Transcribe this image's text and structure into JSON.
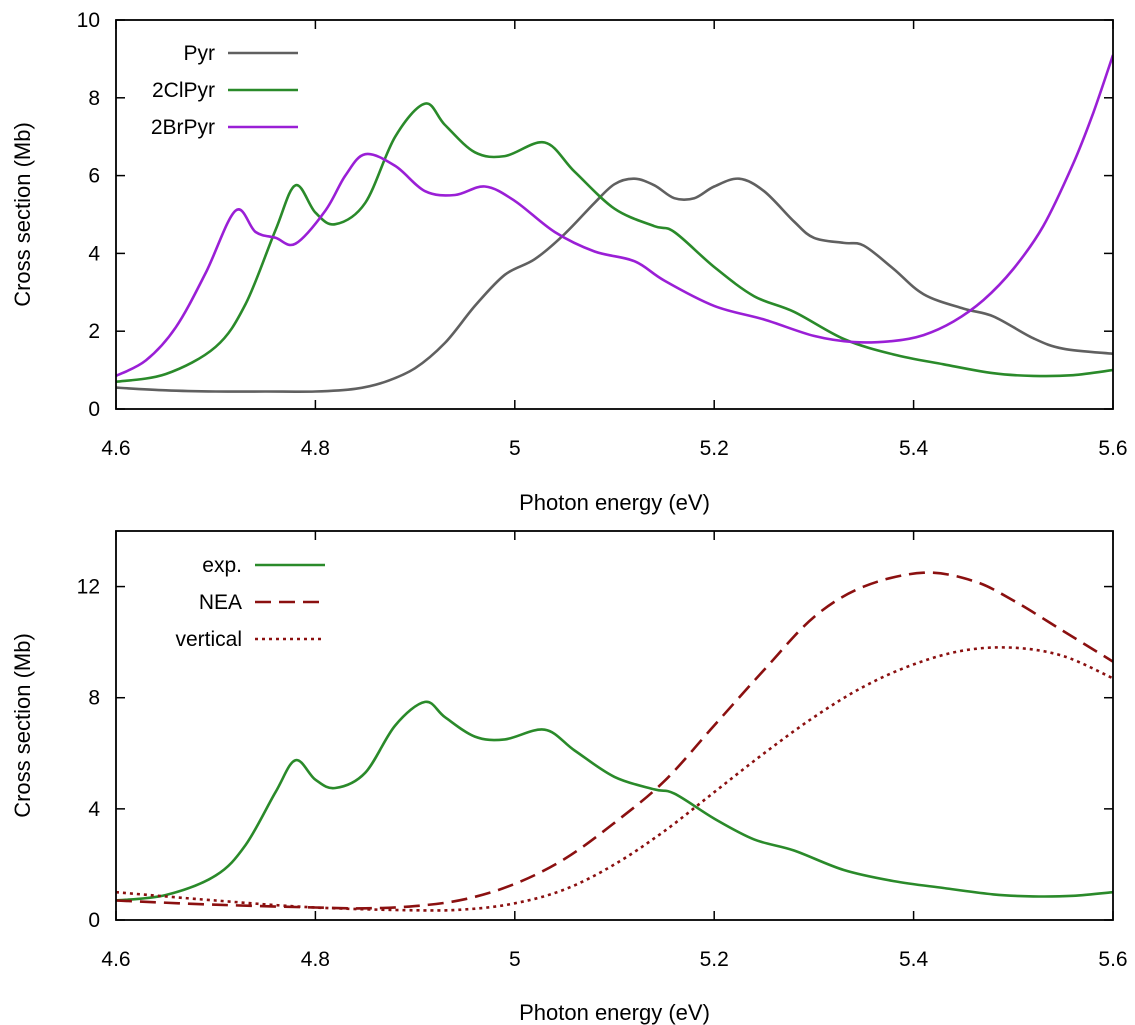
{
  "chart_data": [
    {
      "type": "line",
      "xlabel": "Photon energy (eV)",
      "ylabel": "Cross section (Mb)",
      "xlim": [
        4.6,
        5.6
      ],
      "ylim": [
        0,
        10
      ],
      "xticks": [
        4.6,
        4.8,
        5,
        5.2,
        5.4,
        5.6
      ],
      "xtick_labels": [
        "4.6",
        "4.8",
        "5",
        "5.2",
        "5.4",
        "5.6"
      ],
      "yticks": [
        0,
        2,
        4,
        6,
        8,
        10
      ],
      "ytick_labels": [
        "0",
        "2",
        "4",
        "6",
        "8",
        "10"
      ],
      "grid": false,
      "legend_position": "top-left",
      "series": [
        {
          "name": "Pyr",
          "color": "#606060",
          "dash": "solid",
          "x": [
            4.6,
            4.65,
            4.7,
            4.75,
            4.8,
            4.84,
            4.87,
            4.9,
            4.93,
            4.96,
            4.99,
            5.02,
            5.05,
            5.08,
            5.1,
            5.12,
            5.14,
            5.16,
            5.18,
            5.2,
            5.225,
            5.25,
            5.28,
            5.3,
            5.33,
            5.35,
            5.38,
            5.41,
            5.45,
            5.48,
            5.52,
            5.55,
            5.6
          ],
          "y": [
            0.55,
            0.48,
            0.45,
            0.45,
            0.45,
            0.52,
            0.7,
            1.05,
            1.7,
            2.65,
            3.45,
            3.85,
            4.5,
            5.3,
            5.78,
            5.92,
            5.75,
            5.42,
            5.42,
            5.72,
            5.92,
            5.6,
            4.82,
            4.4,
            4.27,
            4.2,
            3.6,
            2.95,
            2.58,
            2.38,
            1.82,
            1.55,
            1.42
          ]
        },
        {
          "name": "2ClPyr",
          "color": "#2a8a2a",
          "dash": "solid",
          "x": [
            4.6,
            4.65,
            4.7,
            4.73,
            4.76,
            4.78,
            4.8,
            4.82,
            4.85,
            4.88,
            4.91,
            4.93,
            4.96,
            4.99,
            5.03,
            5.06,
            5.1,
            5.14,
            5.16,
            5.2,
            5.24,
            5.28,
            5.33,
            5.38,
            5.43,
            5.48,
            5.52,
            5.56,
            5.6
          ],
          "y": [
            0.7,
            0.9,
            1.6,
            2.7,
            4.6,
            5.75,
            5.05,
            4.75,
            5.3,
            7.0,
            7.85,
            7.3,
            6.6,
            6.5,
            6.85,
            6.1,
            5.15,
            4.7,
            4.55,
            3.65,
            2.9,
            2.5,
            1.8,
            1.4,
            1.15,
            0.92,
            0.85,
            0.87,
            1.0
          ]
        },
        {
          "name": "2BrPyr",
          "color": "#9a1fd6",
          "dash": "solid",
          "x": [
            4.6,
            4.63,
            4.66,
            4.69,
            4.72,
            4.74,
            4.76,
            4.78,
            4.81,
            4.83,
            4.85,
            4.88,
            4.91,
            4.94,
            4.97,
            5.0,
            5.04,
            5.08,
            5.12,
            5.15,
            5.2,
            5.25,
            5.3,
            5.34,
            5.38,
            5.41,
            5.44,
            5.47,
            5.5,
            5.53,
            5.56,
            5.58,
            5.6
          ],
          "y": [
            0.85,
            1.25,
            2.1,
            3.5,
            5.1,
            4.55,
            4.4,
            4.25,
            5.1,
            6.0,
            6.55,
            6.25,
            5.6,
            5.5,
            5.72,
            5.35,
            4.55,
            4.05,
            3.8,
            3.3,
            2.65,
            2.3,
            1.88,
            1.72,
            1.75,
            1.9,
            2.25,
            2.8,
            3.6,
            4.7,
            6.3,
            7.6,
            9.1
          ]
        }
      ]
    },
    {
      "type": "line",
      "xlabel": "Photon energy (eV)",
      "ylabel": "Cross section (Mb)",
      "xlim": [
        4.6,
        5.6
      ],
      "ylim": [
        0,
        14
      ],
      "xticks": [
        4.6,
        4.8,
        5,
        5.2,
        5.4,
        5.6
      ],
      "xtick_labels": [
        "4.6",
        "4.8",
        "5",
        "5.2",
        "5.4",
        "5.6"
      ],
      "yticks": [
        0,
        4,
        8,
        12
      ],
      "ytick_labels": [
        "0",
        "4",
        "8",
        "12"
      ],
      "grid": false,
      "legend_position": "top-left",
      "series": [
        {
          "name": "exp.",
          "color": "#2a8a2a",
          "dash": "solid",
          "x": [
            4.6,
            4.65,
            4.7,
            4.73,
            4.76,
            4.78,
            4.8,
            4.82,
            4.85,
            4.88,
            4.91,
            4.93,
            4.96,
            4.99,
            5.03,
            5.06,
            5.1,
            5.14,
            5.16,
            5.2,
            5.24,
            5.28,
            5.33,
            5.38,
            5.43,
            5.48,
            5.52,
            5.56,
            5.6
          ],
          "y": [
            0.7,
            0.9,
            1.6,
            2.7,
            4.6,
            5.75,
            5.05,
            4.75,
            5.3,
            7.0,
            7.85,
            7.3,
            6.6,
            6.5,
            6.85,
            6.1,
            5.15,
            4.7,
            4.55,
            3.65,
            2.9,
            2.5,
            1.8,
            1.4,
            1.15,
            0.92,
            0.85,
            0.87,
            1.0
          ]
        },
        {
          "name": "NEA",
          "color": "#8b1010",
          "dash": "dashed",
          "x": [
            4.6,
            4.7,
            4.8,
            4.85,
            4.9,
            4.95,
            5.0,
            5.05,
            5.1,
            5.15,
            5.2,
            5.25,
            5.3,
            5.35,
            5.41,
            5.46,
            5.5,
            5.55,
            5.6
          ],
          "y": [
            0.7,
            0.55,
            0.45,
            0.42,
            0.5,
            0.75,
            1.3,
            2.2,
            3.5,
            5.0,
            7.0,
            9.0,
            10.9,
            12.0,
            12.5,
            12.2,
            11.5,
            10.4,
            9.3
          ]
        },
        {
          "name": "vertical",
          "color": "#8b1010",
          "dash": "dotted",
          "x": [
            4.6,
            4.7,
            4.8,
            4.9,
            4.95,
            5.0,
            5.05,
            5.1,
            5.15,
            5.2,
            5.25,
            5.3,
            5.35,
            5.4,
            5.45,
            5.5,
            5.55,
            5.6
          ],
          "y": [
            1.0,
            0.7,
            0.45,
            0.35,
            0.38,
            0.6,
            1.1,
            2.0,
            3.2,
            4.6,
            6.0,
            7.3,
            8.4,
            9.2,
            9.7,
            9.8,
            9.5,
            8.7
          ]
        }
      ]
    }
  ]
}
